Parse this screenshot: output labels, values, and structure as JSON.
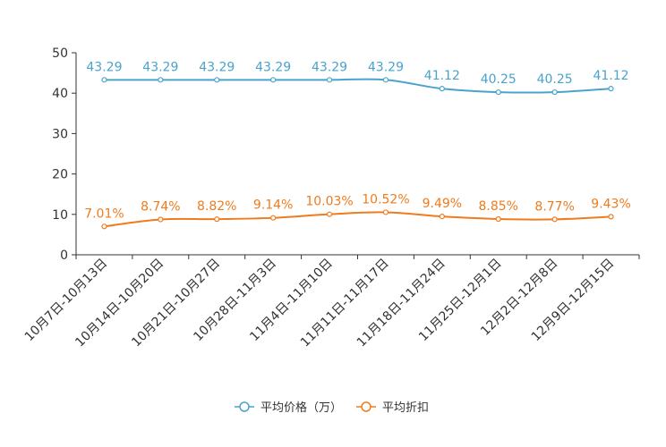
{
  "chart_data": {
    "type": "line",
    "title": "",
    "xlabel": "",
    "ylabel": "",
    "ylim": [
      0,
      50
    ],
    "yticks": [
      0,
      10,
      20,
      30,
      40,
      50
    ],
    "grid": false,
    "legend_position": "bottom-center",
    "categories": [
      "10月7日-10月13日",
      "10月14日-10月20日",
      "10月21日-10月27日",
      "10月28日-11月3日",
      "11月4日-11月10日",
      "11月11日-11月17日",
      "11月18日-11月24日",
      "11月25日-12月1日",
      "12月2日-12月8日",
      "12月9日-12月15日"
    ],
    "series": [
      {
        "name": "平均价格（万）",
        "color": "#4aa3cc",
        "values": [
          43.29,
          43.29,
          43.29,
          43.29,
          43.29,
          43.29,
          41.12,
          40.25,
          40.25,
          41.12
        ],
        "labels": [
          "43.29",
          "43.29",
          "43.29",
          "43.29",
          "43.29",
          "43.29",
          "41.12",
          "40.25",
          "40.25",
          "41.12"
        ]
      },
      {
        "name": "平均折扣",
        "color": "#f07b1c",
        "values": [
          7.01,
          8.74,
          8.82,
          9.14,
          10.03,
          10.52,
          9.49,
          8.85,
          8.77,
          9.43
        ],
        "labels": [
          "7.01%",
          "8.74%",
          "8.82%",
          "9.14%",
          "10.03%",
          "10.52%",
          "9.49%",
          "8.85%",
          "8.77%",
          "9.43%"
        ]
      }
    ]
  }
}
